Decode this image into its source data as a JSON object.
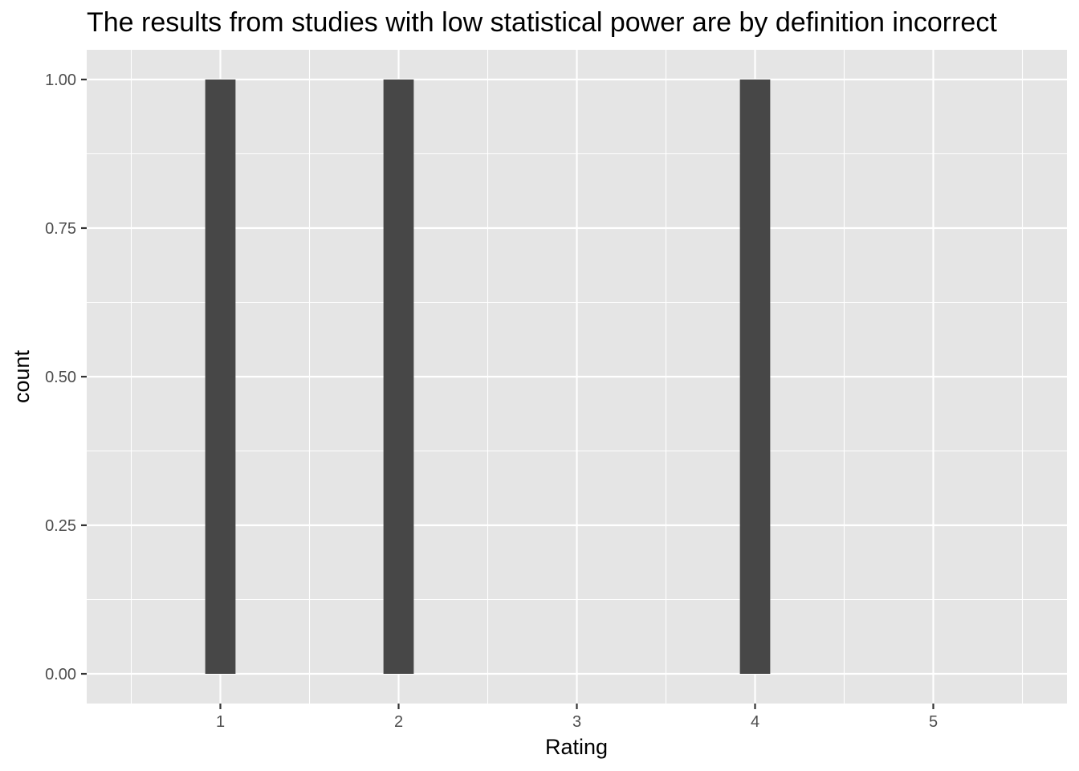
{
  "chart_data": {
    "type": "bar",
    "title": "The results from studies with low statistical power are by definition incorrect",
    "xlabel": "Rating",
    "ylabel": "count",
    "x_ticks": [
      "1",
      "2",
      "3",
      "4",
      "5"
    ],
    "y_ticks": [
      "0.00",
      "0.25",
      "0.50",
      "0.75",
      "1.00"
    ],
    "xlim": [
      0.25,
      5.75
    ],
    "ylim": [
      -0.05,
      1.05
    ],
    "bar_width": 0.17,
    "bars": [
      {
        "x": 1,
        "count": 1
      },
      {
        "x": 2,
        "count": 1
      },
      {
        "x": 4,
        "count": 1
      }
    ],
    "grid": true,
    "legend": "none",
    "colors": {
      "panel": "#e5e5e5",
      "grid": "#ffffff",
      "bar": "#474747",
      "tick_text": "#4d4d4d",
      "tick_mark": "#333333"
    }
  }
}
